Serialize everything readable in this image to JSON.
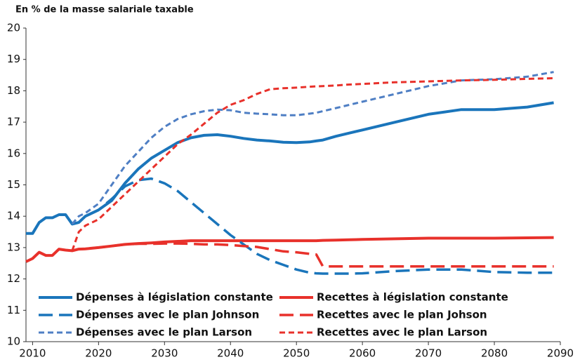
{
  "chart_data": {
    "type": "line",
    "title": "En % de la masse salariale taxable",
    "x": [
      2009,
      2010,
      2011,
      2012,
      2013,
      2014,
      2015,
      2016,
      2017,
      2018,
      2020,
      2022,
      2024,
      2026,
      2028,
      2030,
      2032,
      2034,
      2036,
      2038,
      2040,
      2042,
      2044,
      2046,
      2048,
      2050,
      2052,
      2053,
      2054,
      2056,
      2058,
      2060,
      2065,
      2070,
      2075,
      2080,
      2085,
      2089
    ],
    "xlim": [
      2009,
      2090
    ],
    "xticks": [
      2010,
      2020,
      2030,
      2040,
      2050,
      2060,
      2070,
      2080,
      2090
    ],
    "ylim": [
      10,
      20
    ],
    "yticks": [
      10,
      11,
      12,
      13,
      14,
      15,
      16,
      17,
      18,
      19,
      20
    ],
    "grid": false,
    "series": [
      {
        "name": "Dépenses à législation constante",
        "color": "#1a75bb",
        "style": "solid",
        "values": [
          13.45,
          13.45,
          13.8,
          13.95,
          13.95,
          14.05,
          14.05,
          13.75,
          13.8,
          14.0,
          14.2,
          14.5,
          15.05,
          15.5,
          15.85,
          16.1,
          16.35,
          16.5,
          16.58,
          16.6,
          16.55,
          16.48,
          16.43,
          16.4,
          16.36,
          16.35,
          16.37,
          16.4,
          16.43,
          16.55,
          16.65,
          16.75,
          17.0,
          17.25,
          17.4,
          17.4,
          17.48,
          17.62
        ]
      },
      {
        "name": "Recettes à législation constante",
        "color": "#e8312b",
        "style": "solid",
        "values": [
          12.55,
          12.65,
          12.85,
          12.75,
          12.75,
          12.95,
          12.92,
          12.9,
          12.95,
          12.96,
          13.0,
          13.05,
          13.1,
          13.13,
          13.15,
          13.18,
          13.2,
          13.22,
          13.22,
          13.22,
          13.22,
          13.22,
          13.22,
          13.22,
          13.22,
          13.22,
          13.22,
          13.22,
          13.23,
          13.24,
          13.25,
          13.26,
          13.28,
          13.3,
          13.3,
          13.3,
          13.31,
          13.32
        ]
      },
      {
        "name": "Dépenses avec le plan Johnson",
        "color": "#1a75bb",
        "style": "long",
        "values": [
          null,
          null,
          null,
          null,
          null,
          null,
          null,
          13.75,
          13.8,
          14.0,
          14.2,
          14.55,
          14.95,
          15.15,
          15.2,
          15.05,
          14.8,
          14.45,
          14.1,
          13.75,
          13.4,
          13.1,
          12.8,
          12.6,
          12.45,
          12.3,
          12.2,
          12.18,
          12.17,
          12.17,
          12.17,
          12.18,
          12.25,
          12.3,
          12.3,
          12.22,
          12.2,
          12.2
        ]
      },
      {
        "name": "Recettes avec le plan Johson",
        "color": "#e8312b",
        "style": "long",
        "values": [
          null,
          null,
          null,
          null,
          null,
          null,
          null,
          12.9,
          12.95,
          12.96,
          13.0,
          13.05,
          13.1,
          13.12,
          13.12,
          13.13,
          13.13,
          13.12,
          13.1,
          13.1,
          13.08,
          13.05,
          13.02,
          12.95,
          12.88,
          12.85,
          12.8,
          12.78,
          12.4,
          12.4,
          12.4,
          12.4,
          12.4,
          12.4,
          12.4,
          12.4,
          12.4,
          12.4
        ]
      },
      {
        "name": "Dépenses avec le plan Larson",
        "color": "#4f7fc4",
        "style": "short",
        "values": [
          null,
          null,
          null,
          null,
          null,
          null,
          null,
          13.75,
          14.0,
          14.1,
          14.4,
          15.0,
          15.6,
          16.05,
          16.5,
          16.85,
          17.1,
          17.25,
          17.35,
          17.4,
          17.38,
          17.3,
          17.27,
          17.25,
          17.22,
          17.22,
          17.27,
          17.3,
          17.35,
          17.45,
          17.55,
          17.65,
          17.9,
          18.15,
          18.33,
          18.37,
          18.45,
          18.6
        ]
      },
      {
        "name": "Recettes avec le plan Larson",
        "color": "#e8312b",
        "style": "short",
        "values": [
          null,
          null,
          null,
          null,
          null,
          null,
          null,
          12.9,
          13.5,
          13.7,
          13.9,
          14.3,
          14.7,
          15.1,
          15.5,
          15.9,
          16.3,
          16.6,
          16.95,
          17.3,
          17.55,
          17.7,
          17.9,
          18.05,
          18.08,
          18.1,
          18.13,
          18.14,
          18.15,
          18.17,
          18.2,
          18.22,
          18.27,
          18.3,
          18.33,
          18.35,
          18.38,
          18.4
        ]
      }
    ]
  }
}
